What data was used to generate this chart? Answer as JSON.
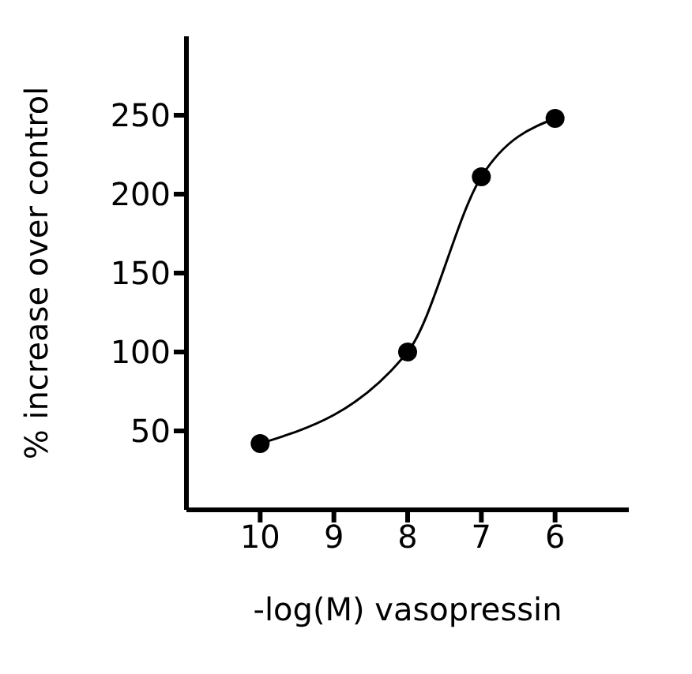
{
  "chart_data": {
    "type": "line",
    "xlabel": "-log(M) vasopressin",
    "ylabel": "% increase over control",
    "x": [
      10,
      8,
      7,
      6
    ],
    "series": [
      {
        "color": "#000000",
        "values": [
          42,
          100,
          211,
          248
        ]
      }
    ],
    "xlim": [
      11,
      5
    ],
    "xticks": [
      10,
      9,
      8,
      7,
      6
    ],
    "ylim": [
      0,
      300
    ],
    "yticks": [
      50,
      100,
      150,
      200,
      250
    ],
    "marker": "circle",
    "line_style": "solid",
    "grid": false,
    "legend": false
  }
}
